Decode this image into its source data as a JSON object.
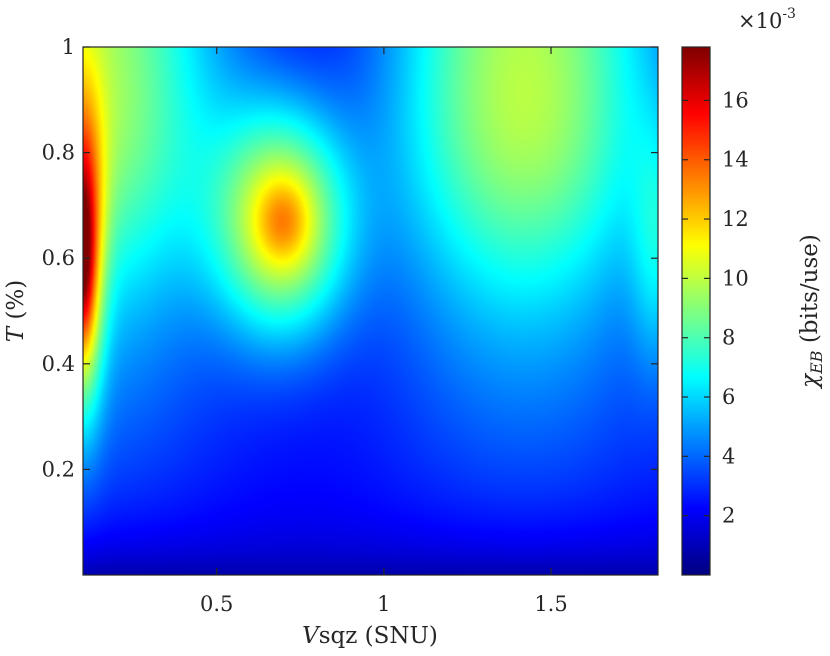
{
  "chart_data": {
    "type": "heatmap",
    "xlabel": {
      "var": "V",
      "rest": "sqz (SNU)"
    },
    "ylabel": {
      "var": "T",
      "rest": " (%)"
    },
    "colorbar_label": {
      "var": "χ",
      "sub": "EB",
      "rest": " (bits/use)"
    },
    "colorbar_exponent": {
      "base": "×10",
      "exp": "-3"
    },
    "x_range": [
      0.1,
      1.82
    ],
    "y_range": [
      0.0,
      1.0
    ],
    "color_range": [
      0.0,
      17.8
    ],
    "colormap": "jet",
    "x_ticks": [
      {
        "value": 0.5,
        "label": "0.5"
      },
      {
        "value": 1.0,
        "label": "1"
      },
      {
        "value": 1.5,
        "label": "1.5"
      }
    ],
    "y_ticks": [
      {
        "value": 0.2,
        "label": "0.2"
      },
      {
        "value": 0.4,
        "label": "0.4"
      },
      {
        "value": 0.6,
        "label": "0.6"
      },
      {
        "value": 0.8,
        "label": "0.8"
      },
      {
        "value": 1.0,
        "label": "1"
      }
    ],
    "colorbar_ticks": [
      {
        "value": 2,
        "label": "2"
      },
      {
        "value": 4,
        "label": "4"
      },
      {
        "value": 6,
        "label": "6"
      },
      {
        "value": 8,
        "label": "8"
      },
      {
        "value": 10,
        "label": "10"
      },
      {
        "value": 12,
        "label": "12"
      },
      {
        "value": 14,
        "label": "14"
      },
      {
        "value": 16,
        "label": "16"
      }
    ],
    "features": [
      {
        "x": 0.1,
        "y": 0.6,
        "value": 17.5
      },
      {
        "x": 0.7,
        "y": 0.67,
        "value": 13.0
      },
      {
        "x": 1.42,
        "y": 0.05,
        "value": 0.3
      }
    ]
  }
}
